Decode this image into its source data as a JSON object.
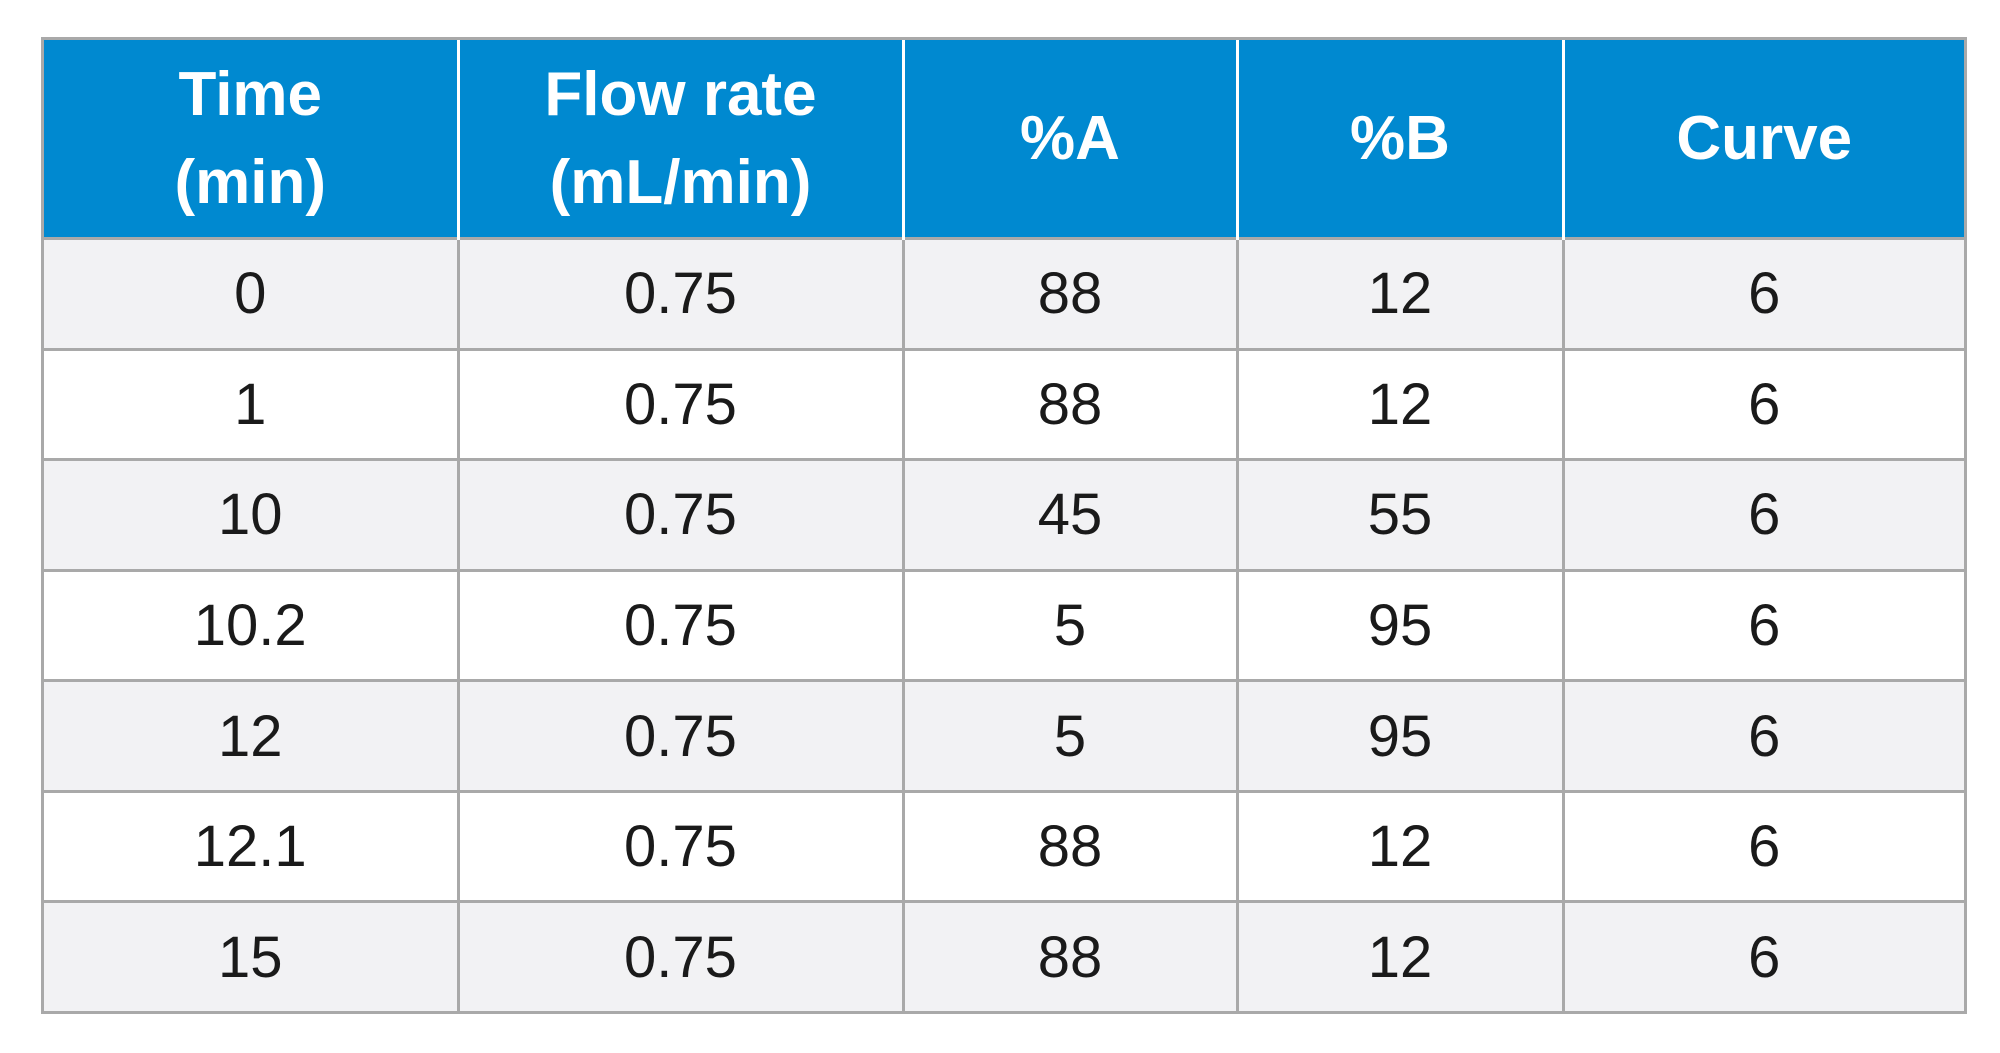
{
  "table": {
    "headers": [
      {
        "line1": "Time",
        "line2": "(min)"
      },
      {
        "line1": "Flow rate",
        "line2": "(mL/min)"
      },
      {
        "line1": "%A",
        "line2": ""
      },
      {
        "line1": "%B",
        "line2": ""
      },
      {
        "line1": "Curve",
        "line2": ""
      }
    ],
    "rows": [
      [
        "0",
        "0.75",
        "88",
        "12",
        "6"
      ],
      [
        "1",
        "0.75",
        "88",
        "12",
        "6"
      ],
      [
        "10",
        "0.75",
        "45",
        "55",
        "6"
      ],
      [
        "10.2",
        "0.75",
        "5",
        "95",
        "6"
      ],
      [
        "12",
        "0.75",
        "5",
        "95",
        "6"
      ],
      [
        "12.1",
        "0.75",
        "88",
        "12",
        "6"
      ],
      [
        "15",
        "0.75",
        "88",
        "12",
        "6"
      ]
    ]
  },
  "colors": {
    "header_bg": "#0089d0",
    "header_text": "#ffffff",
    "row_odd_bg": "#f2f2f4",
    "row_even_bg": "#ffffff",
    "border": "#a9a9a9"
  }
}
